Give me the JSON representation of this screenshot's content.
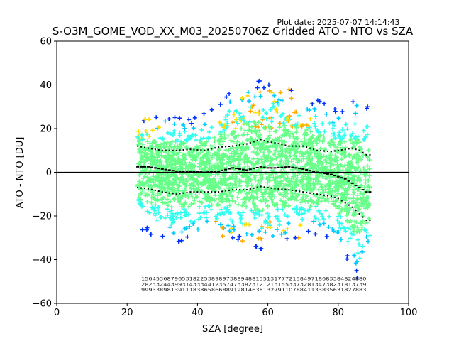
{
  "chart_data": {
    "type": "scatter",
    "title": "S-O3M_GOME_VOD_XX_M03_20250706Z Gridded ATO - NTO vs SZA",
    "plot_date": "Plot date: 2025-07-07 14:14:43",
    "xlabel": "SZA [degree]",
    "ylabel": "ATO - NTO [DU]",
    "xlim": [
      0,
      100
    ],
    "ylim": [
      -60,
      60
    ],
    "xticks": [
      0,
      20,
      40,
      60,
      80,
      100
    ],
    "yticks": [
      -60,
      -40,
      -20,
      0,
      20,
      40,
      60
    ],
    "grid": false,
    "reference_line": 0,
    "sza_range": [
      23,
      89
    ],
    "marker": "+",
    "colors": {
      "outer": "#0033ff",
      "cyan": "#00ccff",
      "aqua": "#33ffee",
      "green": "#66ff88",
      "yellow": "#ffdd00",
      "orange": "#ffaa00",
      "mean_line": "#000000"
    },
    "mean_curve": {
      "x": [
        23,
        26,
        30,
        34,
        38,
        42,
        46,
        50,
        54,
        58,
        60,
        62,
        66,
        70,
        74,
        78,
        80,
        82,
        84,
        86,
        88
      ],
      "y": [
        2.5,
        2.5,
        1.5,
        0.5,
        0.5,
        0,
        0.5,
        2,
        1,
        2.5,
        2,
        2,
        2.5,
        1.5,
        0,
        -1,
        -2,
        -3,
        -5,
        -7,
        -9
      ]
    },
    "upper_std": {
      "x": [
        23,
        26,
        30,
        34,
        38,
        42,
        46,
        50,
        54,
        58,
        60,
        62,
        66,
        70,
        74,
        78,
        80,
        82,
        84,
        86,
        88
      ],
      "y": [
        12,
        11,
        10,
        10,
        10.5,
        10,
        11.5,
        12,
        13,
        15,
        14,
        13.5,
        12,
        12,
        10,
        9.5,
        10,
        10.5,
        11,
        10,
        8
      ]
    },
    "lower_std": {
      "x": [
        23,
        26,
        30,
        34,
        38,
        42,
        46,
        50,
        54,
        58,
        60,
        62,
        66,
        70,
        74,
        78,
        80,
        82,
        84,
        86,
        88
      ],
      "y": [
        -7,
        -7.5,
        -9,
        -10,
        -9,
        -9,
        -9,
        -8,
        -8,
        -6.5,
        -7,
        -7.5,
        -8,
        -9,
        -10,
        -11,
        -12,
        -14,
        -16,
        -19,
        -22
      ]
    },
    "scatter_envelope": {
      "x": [
        23,
        26,
        30,
        34,
        38,
        42,
        46,
        50,
        54,
        58,
        60,
        62,
        66,
        70,
        74,
        78,
        80,
        82,
        84,
        86,
        88
      ],
      "upper": [
        25,
        24,
        26,
        25,
        24,
        27,
        30,
        38,
        40,
        42,
        40,
        40,
        38,
        35,
        33,
        30,
        28,
        30,
        32,
        35,
        30
      ],
      "lower": [
        -25,
        -28,
        -30,
        -32,
        -30,
        -27,
        -30,
        -30,
        -32,
        -35,
        -34,
        -33,
        -30,
        -30,
        -28,
        -30,
        -32,
        -38,
        -45,
        -50,
        -35
      ]
    },
    "bin_count_rows": {
      "x_start": 24,
      "x_end": 88,
      "y_values": [
        -49.5,
        -52,
        -54.5
      ],
      "row1": "1564536879653182253898973889488135131777215849718683384824880",
      "row2": "2823324439931433344123574733823121213155337328134738231813739",
      "row3": "9993389813911183865866889198146381327911078841133835631827883"
    }
  }
}
